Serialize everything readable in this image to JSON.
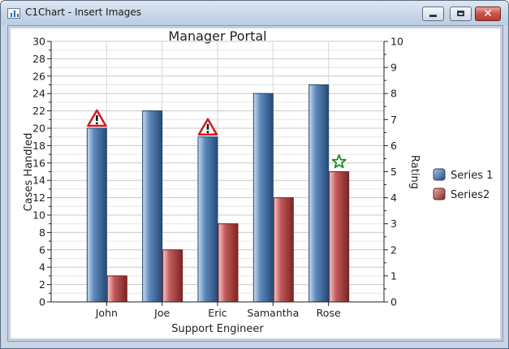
{
  "window": {
    "title": "C1Chart - Insert Images",
    "icon": "chart-app-icon"
  },
  "controls": {
    "minimize": "minimize-icon",
    "maximize": "maximize-icon",
    "close": "close-icon"
  },
  "chart_data": {
    "type": "bar",
    "title": "Manager Portal",
    "xlabel": "Support Engineer",
    "ylabel": "Cases Handled",
    "y2label": "Rating",
    "categories": [
      "John",
      "Joe",
      "Eric",
      "Samantha",
      "Rose"
    ],
    "ylim": [
      0,
      30
    ],
    "y2lim": [
      0,
      10
    ],
    "yticks": [
      "0",
      "2",
      "4",
      "6",
      "8",
      "10",
      "12",
      "14",
      "16",
      "18",
      "20",
      "22",
      "24",
      "26",
      "28",
      "30"
    ],
    "y2ticks": [
      "0",
      "1",
      "2",
      "3",
      "4",
      "5",
      "6",
      "7",
      "8",
      "9",
      "10"
    ],
    "series": [
      {
        "name": "Series 1",
        "values": [
          20,
          22,
          19,
          24,
          25
        ],
        "axis": "left",
        "color": "#2f5e91"
      },
      {
        "name": "Series2",
        "values": [
          3,
          6,
          9,
          12,
          15
        ],
        "axis": "left",
        "color": "#a83a3a"
      }
    ],
    "annotations": [
      {
        "icon": "warning-icon",
        "category": "John",
        "series": "Series 1"
      },
      {
        "icon": "warning-icon",
        "category": "Eric",
        "series": "Series 1"
      },
      {
        "icon": "star-icon",
        "category": "Rose",
        "series": "Series2"
      }
    ],
    "grid": true,
    "legend_position": "right"
  }
}
